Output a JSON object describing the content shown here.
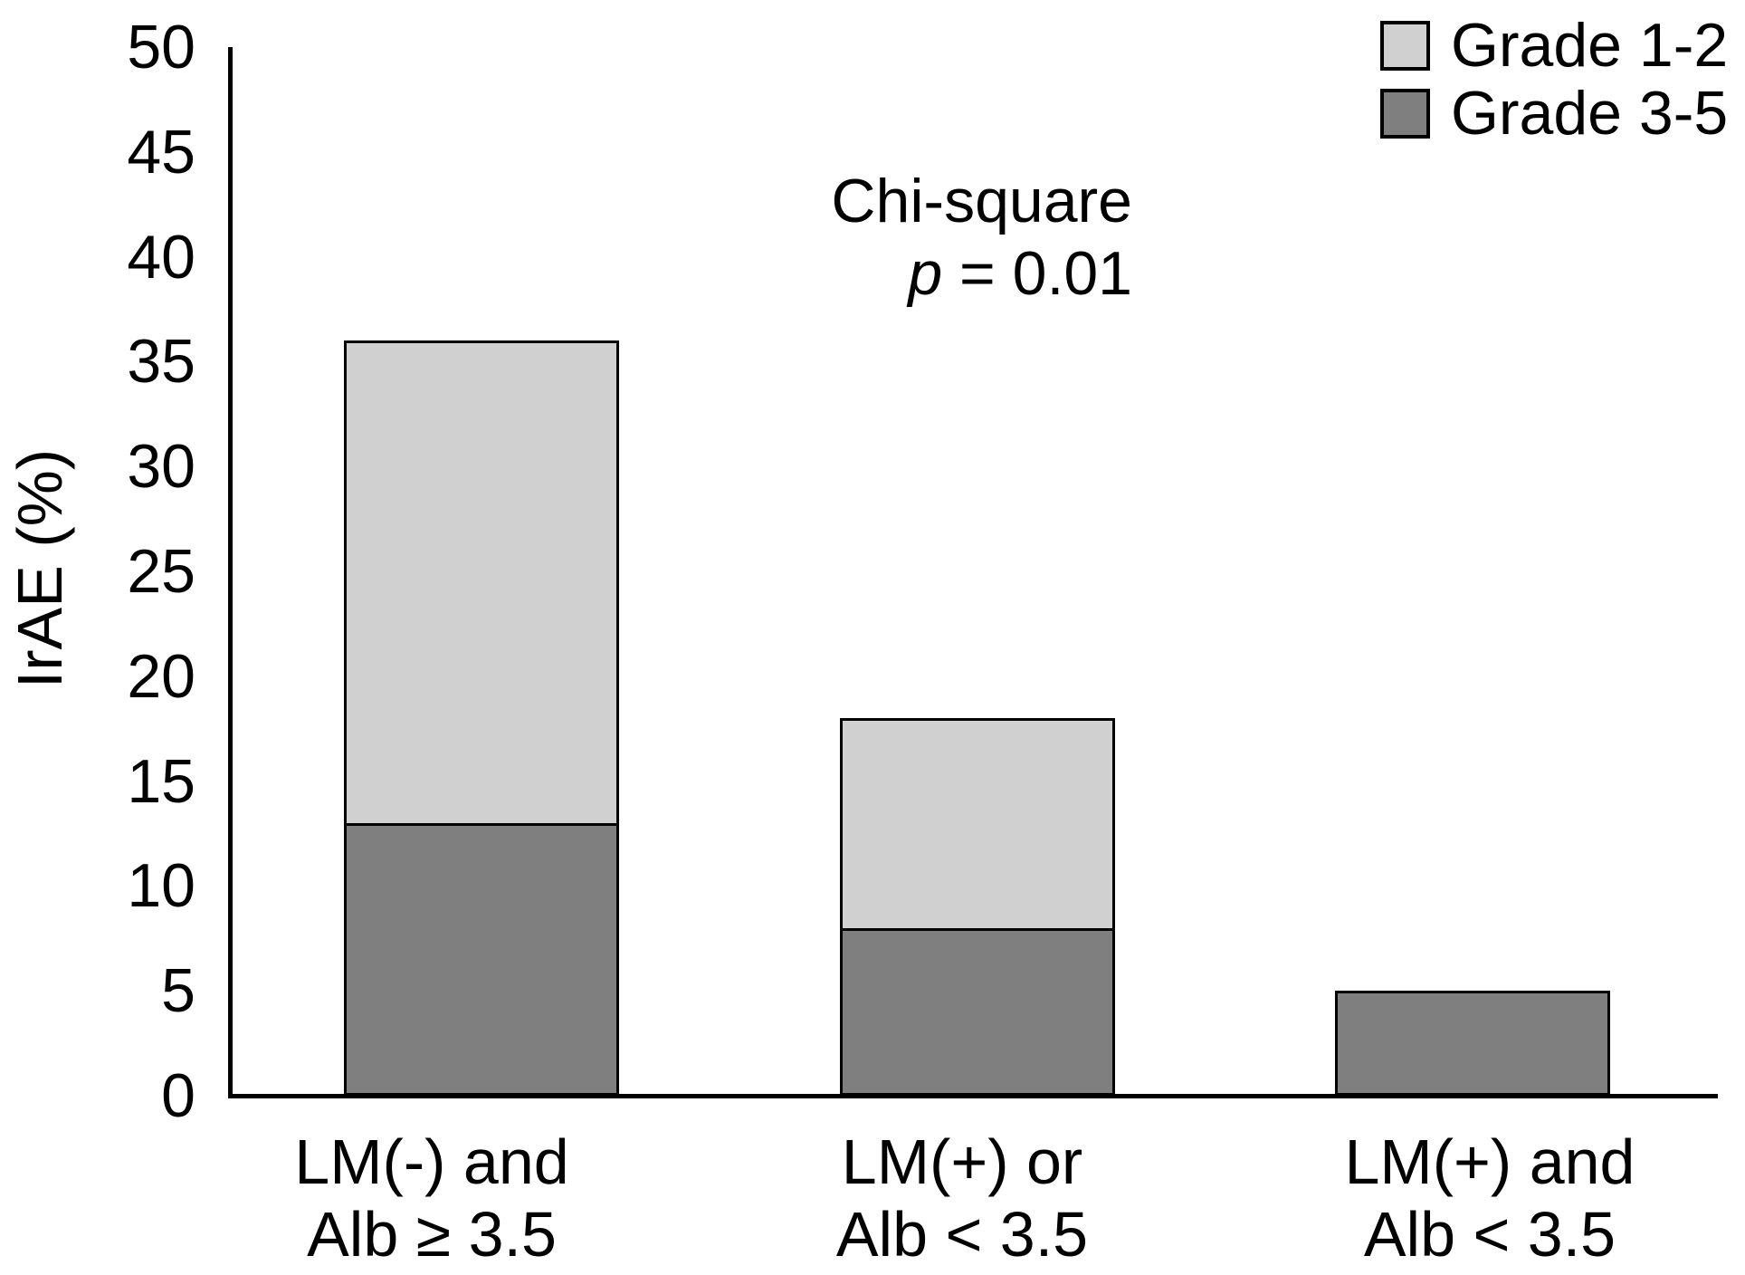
{
  "figure": {
    "annotation": {
      "line1": "Chi-square",
      "p_italic": "p",
      "p_rest": " = 0.01"
    }
  },
  "legend": {
    "position": "top-right",
    "items": [
      {
        "label": "Grade 1-2",
        "color": "#d0d0d0",
        "swatch_name": "grade-1-2-swatch"
      },
      {
        "label": "Grade 3-5",
        "color": "#7f7f7f",
        "swatch_name": "grade-3-5-swatch"
      }
    ]
  },
  "chart_data": {
    "type": "bar",
    "stacked": true,
    "title": "",
    "xlabel": "",
    "ylabel": "IrAE (%)",
    "ylim": [
      0,
      50
    ],
    "yticks": [
      0,
      5,
      10,
      15,
      20,
      25,
      30,
      35,
      40,
      45,
      50
    ],
    "grid": false,
    "legend_position": "top-right",
    "annotation": "Chi-square p = 0.01",
    "categories": [
      [
        "LM(-) and",
        "Alb ≥ 3.5"
      ],
      [
        "LM(+) or",
        "Alb < 3.5"
      ],
      [
        "LM(+) and",
        "Alb < 3.5"
      ]
    ],
    "series": [
      {
        "name": "Grade 3-5",
        "color": "#7f7f7f",
        "values": [
          13,
          8,
          5
        ]
      },
      {
        "name": "Grade 1-2",
        "color": "#d0d0d0",
        "values": [
          23,
          10,
          0
        ]
      }
    ],
    "stack_totals": [
      36,
      18,
      5
    ]
  }
}
